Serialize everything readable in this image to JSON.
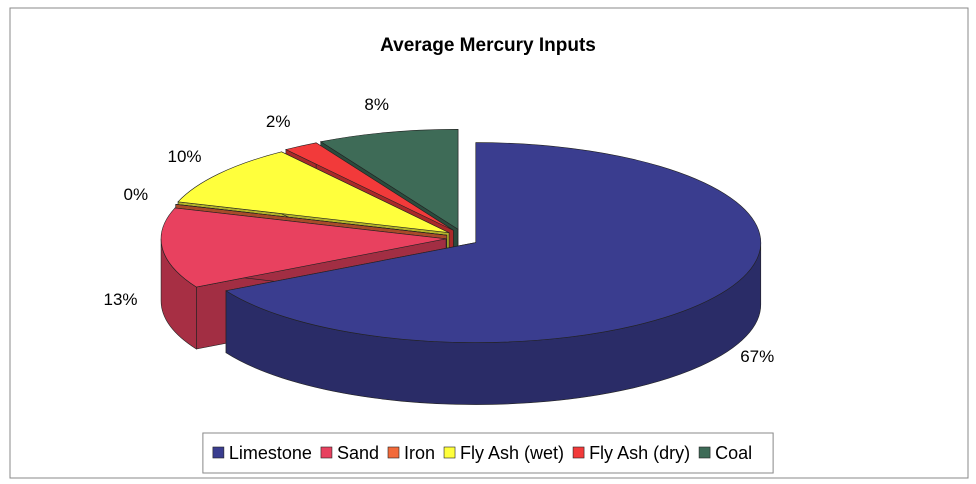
{
  "chart_data": {
    "type": "pie",
    "title": "Average Mercury Inputs",
    "categories": [
      "Limestone",
      "Sand",
      "Iron",
      "Fly Ash (wet)",
      "Fly Ash (dry)",
      "Coal"
    ],
    "values": [
      67,
      13,
      0,
      10,
      2,
      8
    ],
    "value_labels": [
      "67%",
      "13%",
      "0%",
      "10%",
      "2%",
      "8%"
    ],
    "colors": [
      "#3a3d8f",
      "#e8415f",
      "#f26a3a",
      "#ffff3c",
      "#f23a3a",
      "#3e6b57"
    ],
    "legend": "bottom"
  }
}
